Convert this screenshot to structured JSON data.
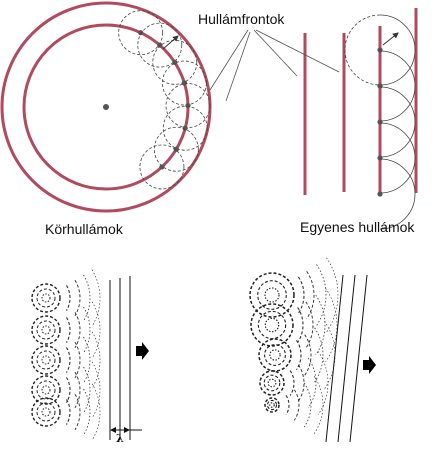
{
  "labels": {
    "wavefronts": "Hullámfrontok",
    "circular_waves": "Körhullámok",
    "straight_waves": "Egyenes hullámok",
    "wavelength_symbol": "λ"
  },
  "colors": {
    "wavefront": "#b04a5c",
    "ink": "#333333",
    "dot": "#555555",
    "background": "#ffffff"
  }
}
